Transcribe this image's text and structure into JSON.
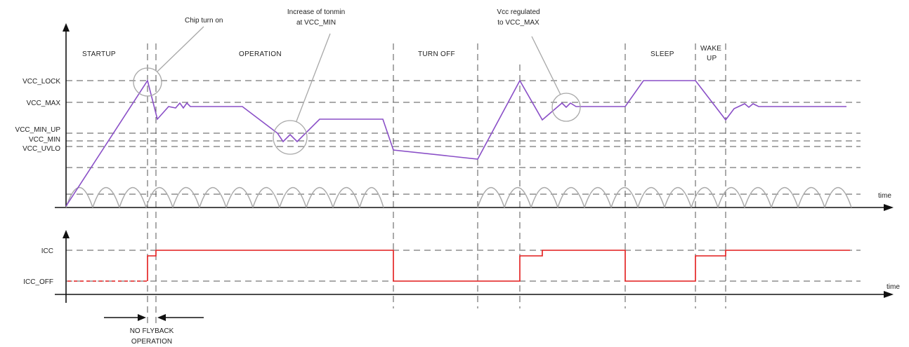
{
  "vcc_levels": {
    "lock": "VCC_LOCK",
    "max": "VCC_MAX",
    "min_up": "VCC_MIN_UP",
    "min": "VCC_MIN",
    "uvlo": "VCC_UVLO"
  },
  "icc_levels": {
    "icc": "ICC",
    "icc_off": "ICC_OFF"
  },
  "axis": {
    "time_top": "time",
    "time_bottom": "time"
  },
  "phases": {
    "startup": "STARTUP",
    "operation": "OPERATION",
    "turn_off": "TURN OFF",
    "sleep": "SLEEP",
    "wake_line1": "WAKE",
    "wake_line2": "UP"
  },
  "annotations": {
    "chip_turn_on": "Chip turn on",
    "tonmin_line1": "Increase of tonmin",
    "tonmin_line2": "at VCC_MIN",
    "regulated_line1": "Vcc regulated",
    "regulated_line2": "to VCC_MAX",
    "no_flyback_line1": "NO FLYBACK",
    "no_flyback_line2": "OPERATION"
  },
  "colors": {
    "vcc_trace": "#8a4fc7",
    "icc_trace": "#e21a1a",
    "rectified_arches": "#a8a8a8",
    "callout_circles": "#a8a8a8"
  }
}
